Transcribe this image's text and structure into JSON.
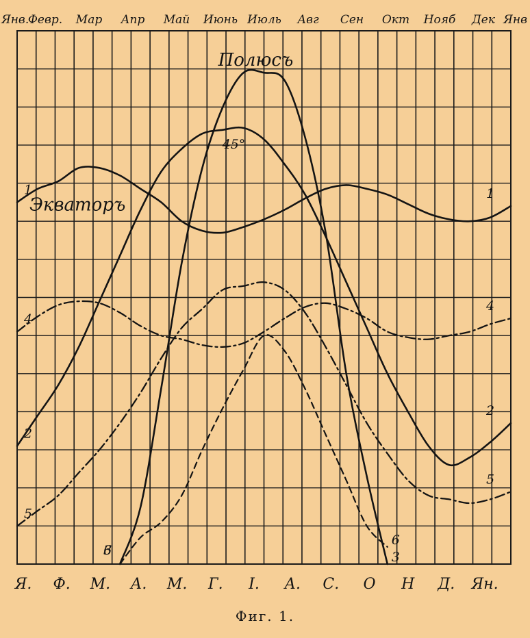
{
  "caption": "Фиг. 1.",
  "chart_data": {
    "type": "line",
    "top_month_labels": [
      "Янв.",
      "Февр.",
      "Мар",
      "Апр",
      "Май",
      "Июнь",
      "Июль",
      "Авг",
      "Сен",
      "Окт",
      "Нояб",
      "Дек",
      "Янв"
    ],
    "bottom_month_labels": [
      "Я.",
      "Ф.",
      "М.",
      "А.",
      "М.",
      "Г.",
      "І.",
      "А.",
      "С.",
      "О",
      "Н",
      "Д.",
      "Ян."
    ],
    "annotations": [
      {
        "text": "Полюсъ",
        "near_series": "3"
      },
      {
        "text": "45°",
        "near_series": "2"
      },
      {
        "text": "Экваторъ",
        "near_series": "1"
      }
    ],
    "x": [
      0,
      0.5,
      1,
      1.5,
      2,
      2.5,
      3,
      3.5,
      4,
      4.5,
      5,
      5.5,
      6,
      6.5,
      7,
      7.5,
      8,
      8.5,
      9,
      9.5,
      10,
      10.5,
      11,
      11.5,
      12
    ],
    "ylim": [
      0,
      14
    ],
    "grid": true,
    "series": [
      {
        "name": "1",
        "style": "solid",
        "label_positions": [
          "start",
          "end"
        ],
        "values": [
          9.5,
          9.85,
          10.05,
          10.4,
          10.4,
          10.2,
          9.85,
          9.5,
          9.0,
          8.75,
          8.7,
          8.85,
          9.05,
          9.3,
          9.6,
          9.85,
          9.95,
          9.85,
          9.7,
          9.45,
          9.2,
          9.05,
          9.0,
          9.1,
          9.4
        ]
      },
      {
        "name": "2",
        "style": "solid",
        "label_positions": [
          "start",
          "end"
        ],
        "values": [
          3.1,
          3.9,
          4.7,
          5.7,
          6.9,
          8.1,
          9.3,
          10.3,
          10.9,
          11.3,
          11.4,
          11.45,
          11.15,
          10.5,
          9.7,
          8.6,
          7.4,
          6.2,
          5.0,
          4.0,
          3.1,
          2.6,
          2.8,
          3.2,
          3.7
        ]
      },
      {
        "name": "3",
        "style": "solid",
        "label_positions": [
          "start",
          "end"
        ],
        "values": [
          null,
          null,
          null,
          null,
          null,
          0,
          1.5,
          4.6,
          7.9,
          10.4,
          12.0,
          12.9,
          12.9,
          12.7,
          11.2,
          8.7,
          5.0,
          2.3,
          0,
          null,
          null,
          null,
          null,
          null,
          null
        ]
      },
      {
        "name": "4",
        "style": "dash-dot",
        "label_positions": [
          "start",
          "end"
        ],
        "values": [
          6.1,
          6.5,
          6.8,
          6.9,
          6.85,
          6.6,
          6.25,
          6.0,
          5.9,
          5.75,
          5.7,
          5.8,
          6.1,
          6.45,
          6.75,
          6.85,
          6.7,
          6.45,
          6.1,
          5.95,
          5.9,
          6.0,
          6.1,
          6.3,
          6.45
        ]
      },
      {
        "name": "5",
        "style": "dash-dot",
        "label_positions": [
          "start",
          "end"
        ],
        "values": [
          1.0,
          1.4,
          1.8,
          2.4,
          3.0,
          3.7,
          4.5,
          5.4,
          6.2,
          6.7,
          7.2,
          7.3,
          7.4,
          7.2,
          6.6,
          5.7,
          4.7,
          3.7,
          2.9,
          2.2,
          1.8,
          1.7,
          1.6,
          1.7,
          1.9
        ]
      },
      {
        "name": "6",
        "style": "dashed",
        "label_positions": [
          "start",
          "end"
        ],
        "values": [
          null,
          null,
          null,
          null,
          null,
          0,
          0.7,
          1.1,
          1.8,
          3.0,
          4.1,
          5.1,
          6.0,
          5.6,
          4.6,
          3.4,
          2.2,
          1.0,
          0.45,
          null,
          null,
          null,
          null,
          null,
          null
        ]
      }
    ]
  }
}
